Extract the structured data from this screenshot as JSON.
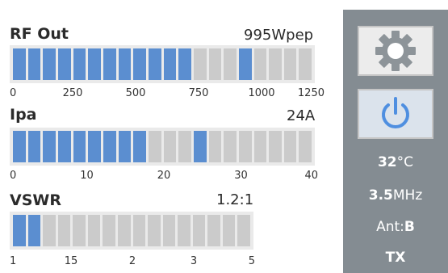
{
  "rf": {
    "title": "RF Out",
    "readout": "995Wpep",
    "ticks": [
      "0",
      "250",
      "500",
      "750",
      "1000",
      "1250"
    ],
    "segments": 20,
    "value": 995,
    "max": 1250,
    "peak_segment": 15
  },
  "ipa": {
    "title": "Ipa",
    "readout": "24A",
    "ticks": [
      "0",
      "10",
      "20",
      "30",
      "40"
    ],
    "segments": 20,
    "value": 24,
    "max": 40,
    "lit_segments": 9,
    "peak_segment": 12
  },
  "vswr": {
    "title": "VSWR",
    "readout": "1.2:1",
    "ticks": [
      "1",
      "15",
      "2",
      "3",
      "5"
    ],
    "segments": 16,
    "lit_segments": 2
  },
  "side": {
    "temp_value": "32",
    "temp_unit": "°C",
    "freq_value": "3.5",
    "freq_unit": "MHz",
    "ant_label": "Ant:",
    "ant_value": "B",
    "mode": "TX"
  },
  "colors": {
    "lit": "#5b8ed0",
    "unlit": "#cbcbcb",
    "panel": "#848c92"
  }
}
